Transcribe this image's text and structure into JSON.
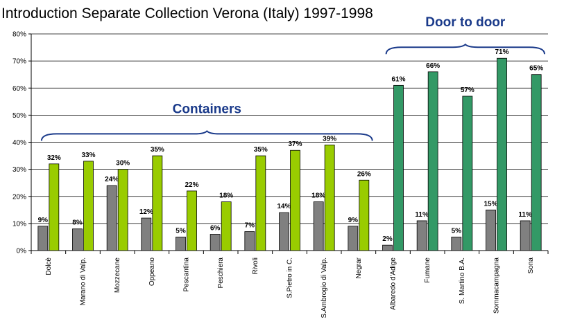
{
  "chart_data": {
    "type": "bar",
    "title": "Introduction Separate Collection Verona (Italy) 1997-1998",
    "xlabel": "",
    "ylabel": "",
    "ylim": [
      0,
      80
    ],
    "yticks": [
      "0%",
      "10%",
      "20%",
      "30%",
      "40%",
      "50%",
      "60%",
      "70%",
      "80%"
    ],
    "grid": true,
    "categories": [
      "Dolcè",
      "Marano di Valp.",
      "Mozzecane",
      "Oppeano",
      "Pescantina",
      "Peschiera",
      "Rivoli",
      "S.Pietro in C.",
      "S.Ambrogio di Valp.",
      "Negrar",
      "Albaredo d'Adige",
      "Fumane",
      "S. Martino B.A.",
      "Sommacampagna",
      "Sona"
    ],
    "series": [
      {
        "values": [
          9,
          8,
          24,
          12,
          5,
          6,
          7,
          14,
          18,
          9,
          2,
          11,
          5,
          15,
          11
        ],
        "labels": [
          "9%",
          "8%",
          "24%",
          "12%",
          "5%",
          "6%",
          "7%",
          "14%",
          "18%",
          "9%",
          "2%",
          "11%",
          "5%",
          "15%",
          "11%"
        ],
        "color": "#808080"
      },
      {
        "values": [
          32,
          33,
          30,
          35,
          22,
          18,
          35,
          37,
          39,
          26,
          61,
          66,
          57,
          71,
          65
        ],
        "labels": [
          "32%",
          "33%",
          "30%",
          "35%",
          "22%",
          "18%",
          "35%",
          "37%",
          "39%",
          "26%",
          "61%",
          "66%",
          "57%",
          "71%",
          "65%"
        ],
        "colors": [
          "#99cc00",
          "#99cc00",
          "#99cc00",
          "#99cc00",
          "#99cc00",
          "#99cc00",
          "#99cc00",
          "#99cc00",
          "#99cc00",
          "#99cc00",
          "#339966",
          "#339966",
          "#339966",
          "#339966",
          "#339966"
        ]
      }
    ],
    "annotations": [
      {
        "text": "Containers",
        "first": 0,
        "last": 9
      },
      {
        "text": "Door to door",
        "first": 10,
        "last": 14
      }
    ],
    "annotation_color": "#1a3a8a"
  }
}
